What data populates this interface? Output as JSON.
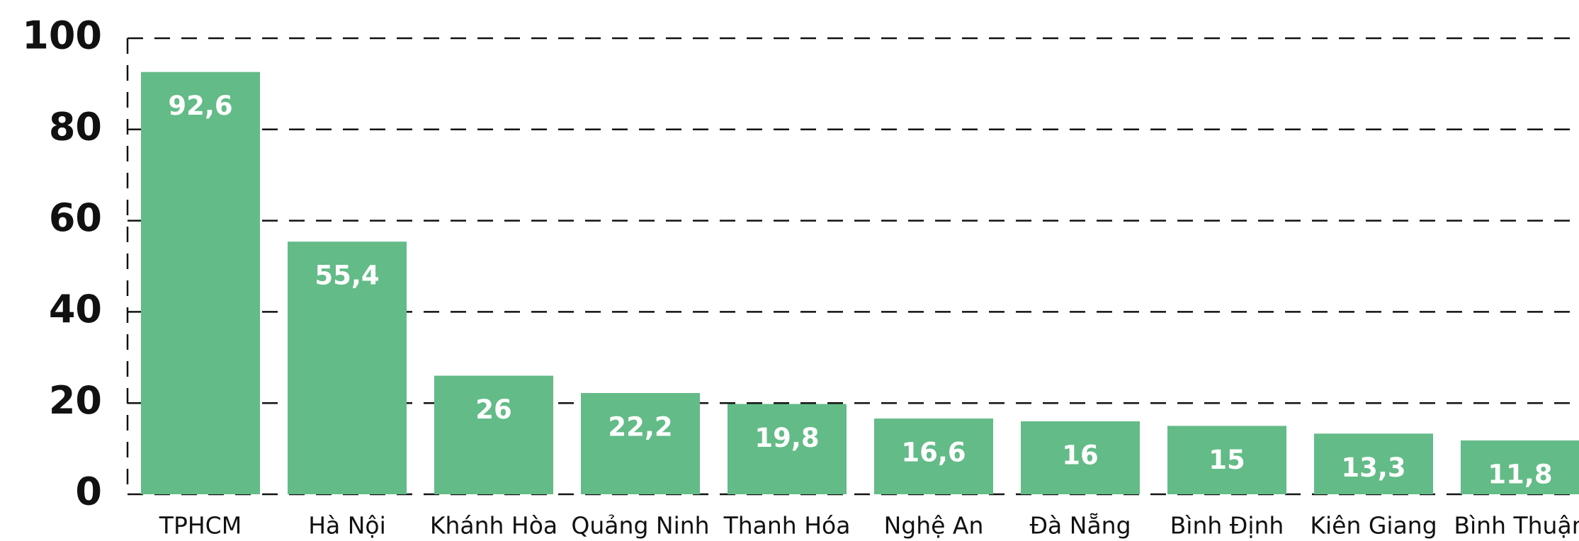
{
  "chart_data": {
    "type": "bar",
    "categories": [
      "TPHCM",
      "Hà Nội",
      "Khánh Hòa",
      "Quảng Ninh",
      "Thanh Hóa",
      "Nghệ An",
      "Đà Nẵng",
      "Bình Định",
      "Kiên Giang",
      "Bình Thuận"
    ],
    "values": [
      92.6,
      55.4,
      26,
      22.2,
      19.8,
      16.6,
      16,
      15,
      13.3,
      11.8
    ],
    "value_labels": [
      "92,6",
      "55,4",
      "26",
      "22,2",
      "19,8",
      "16,6",
      "16",
      "15",
      "13,3",
      "11,8"
    ],
    "color": "#63bb87",
    "ylim": [
      0,
      100
    ],
    "yticks": [
      0,
      20,
      40,
      60,
      80,
      100
    ],
    "grid": true
  }
}
